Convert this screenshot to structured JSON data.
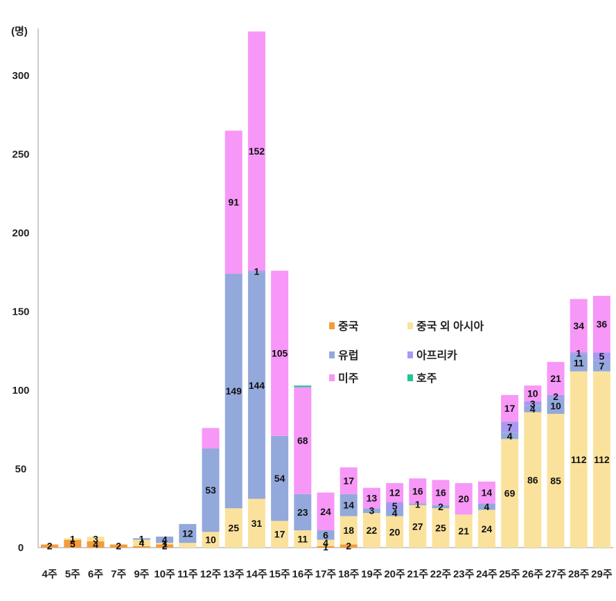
{
  "chart_data": {
    "type": "bar",
    "stacked": true,
    "y_unit_label": "(명)",
    "ylim": [
      0,
      330
    ],
    "yticks": [
      0,
      50,
      100,
      150,
      200,
      250,
      300
    ],
    "grid": false,
    "legend_position": "center-right",
    "categories": [
      "4주",
      "5주",
      "6주",
      "7주",
      "9주",
      "10주",
      "11주",
      "12주",
      "13주",
      "14주",
      "15주",
      "16주",
      "17주",
      "18주",
      "19주",
      "20주",
      "21주",
      "22주",
      "23주",
      "24주",
      "25주",
      "26주",
      "27주",
      "28주",
      "29주"
    ],
    "series": [
      {
        "name": "중국",
        "color": "#f59b3b",
        "values": [
          2,
          5,
          4,
          2,
          1,
          2,
          0,
          0,
          0,
          0,
          0,
          0,
          1,
          2,
          0,
          0,
          0,
          0,
          0,
          0,
          0,
          0,
          0,
          0,
          0
        ],
        "labels": [
          "2",
          "5",
          "4",
          "2",
          "",
          "2",
          "",
          "",
          "",
          "",
          "",
          "",
          "1",
          "2",
          "",
          "",
          "",
          "",
          "",
          "",
          "",
          "",
          "",
          "",
          ""
        ]
      },
      {
        "name": "중국 외 아시아",
        "color": "#fbe29c",
        "values": [
          0,
          1,
          3,
          0,
          4,
          1,
          3,
          10,
          25,
          31,
          17,
          11,
          4,
          18,
          22,
          20,
          27,
          25,
          21,
          24,
          69,
          86,
          85,
          112,
          112
        ],
        "labels": [
          "",
          "1",
          "3",
          "",
          "4",
          "1",
          "",
          "10",
          "25",
          "31",
          "17",
          "11",
          "4",
          "18",
          "22",
          "20",
          "27",
          "25",
          "21",
          "24",
          "69",
          "86",
          "85",
          "112",
          "112"
        ]
      },
      {
        "name": "유럽",
        "color": "#93a9dc",
        "values": [
          0,
          0,
          0,
          0,
          1,
          4,
          12,
          53,
          149,
          144,
          54,
          23,
          6,
          14,
          3,
          4,
          1,
          2,
          0,
          4,
          4,
          4,
          10,
          11,
          7
        ],
        "labels": [
          "",
          "",
          "",
          "",
          "1",
          "4",
          "12",
          "53",
          "149",
          "144",
          "54",
          "23",
          "6",
          "14",
          "3",
          "4",
          "1",
          "2",
          "",
          "4",
          "4",
          "4",
          "10",
          "11",
          "7"
        ]
      },
      {
        "name": "아프리카",
        "color": "#a89af2",
        "values": [
          0,
          0,
          0,
          0,
          0,
          0,
          0,
          0,
          0,
          1,
          0,
          0,
          0,
          0,
          0,
          5,
          0,
          0,
          0,
          0,
          7,
          3,
          2,
          1,
          5
        ],
        "labels": [
          "",
          "",
          "",
          "",
          "",
          "",
          "",
          "",
          "",
          "1",
          "",
          "",
          "",
          "",
          "",
          "5",
          "",
          "",
          "",
          "",
          "7",
          "3",
          "2",
          "1",
          "5"
        ]
      },
      {
        "name": "미주",
        "color": "#f797f7",
        "values": [
          0,
          0,
          0,
          0,
          0,
          0,
          0,
          13,
          91,
          152,
          105,
          68,
          24,
          17,
          13,
          12,
          16,
          16,
          20,
          14,
          17,
          10,
          21,
          34,
          36
        ],
        "labels": [
          "",
          "",
          "",
          "",
          "",
          "",
          "",
          "",
          "91",
          "152",
          "105",
          "68",
          "24",
          "17",
          "13",
          "12",
          "16",
          "16",
          "20",
          "14",
          "17",
          "10",
          "21",
          "34",
          "36"
        ]
      },
      {
        "name": "호주",
        "color": "#23c49a",
        "values": [
          0,
          0,
          0,
          0,
          0,
          0,
          0,
          0,
          0,
          0,
          0,
          1,
          0,
          0,
          0,
          0,
          0,
          0,
          0,
          0,
          0,
          0,
          0,
          0,
          0
        ],
        "labels": [
          "",
          "",
          "",
          "",
          "",
          "",
          "",
          "",
          "",
          "",
          "",
          "",
          "",
          "",
          "",
          "",
          "",
          "",
          "",
          "",
          "",
          "",
          "",
          "",
          ""
        ]
      }
    ],
    "legend": [
      {
        "name": "중국",
        "series": 0
      },
      {
        "name": "중국 외 아시아",
        "series": 1
      },
      {
        "name": "유럽",
        "series": 2
      },
      {
        "name": "아프리카",
        "series": 3
      },
      {
        "name": "미주",
        "series": 4
      },
      {
        "name": "호주",
        "series": 5
      }
    ]
  }
}
